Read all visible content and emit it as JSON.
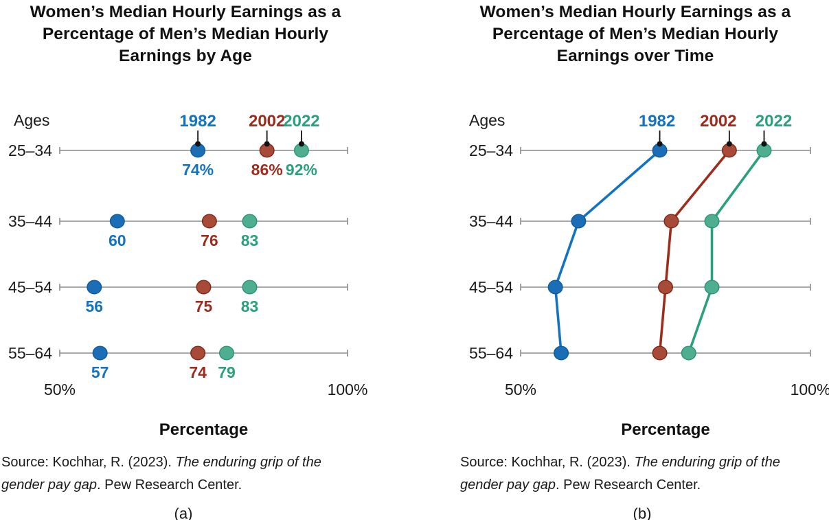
{
  "page": {
    "background": "#ffffff",
    "text_color": "#1a1a1a",
    "axis_color": "#8a8a8a",
    "leader_color": "#111111"
  },
  "chart_data": [
    {
      "type": "scatter",
      "title": "Women’s Median Hourly Earnings as a\nPercentage of Men’s Median Hourly\nEarnings by Age",
      "ylabel": "Ages",
      "xlabel": "Percentage",
      "xlim": [
        50,
        100
      ],
      "x_tick_labels": [
        "50%",
        "100%"
      ],
      "categories": [
        "25–34",
        "35–44",
        "45–54",
        "55–64"
      ],
      "series": [
        {
          "name": "1982",
          "values": [
            74,
            60,
            56,
            57
          ],
          "color": "#1373c2",
          "dot_fill": "#1b6eb5",
          "dot_stroke": "#0f5a9c"
        },
        {
          "name": "2002",
          "values": [
            86,
            76,
            75,
            74
          ],
          "color": "#9e2c1c",
          "dot_fill": "#a84a38",
          "dot_stroke": "#7e2715"
        },
        {
          "name": "2022",
          "values": [
            92,
            83,
            83,
            79
          ],
          "color": "#2aa07c",
          "dot_fill": "#4fae8f",
          "dot_stroke": "#2a9471"
        }
      ],
      "value_labels": true,
      "first_row_value_suffix": "%",
      "connect_lines": false,
      "legend_position": "above-first-row",
      "grid": false,
      "caption": "(a)"
    },
    {
      "type": "line",
      "title": "Women’s Median Hourly Earnings as a\nPercentage of Men’s Median Hourly\nEarnings over Time",
      "ylabel": "Ages",
      "xlabel": "Percentage",
      "xlim": [
        50,
        100
      ],
      "x_tick_labels": [
        "50%",
        "100%"
      ],
      "categories": [
        "25–34",
        "35–44",
        "45–54",
        "55–64"
      ],
      "series": [
        {
          "name": "1982",
          "values": [
            74,
            60,
            56,
            57
          ],
          "color": "#1373c2",
          "dot_fill": "#1b6eb5",
          "dot_stroke": "#0f5a9c"
        },
        {
          "name": "2002",
          "values": [
            86,
            76,
            75,
            74
          ],
          "color": "#9e2c1c",
          "dot_fill": "#a84a38",
          "dot_stroke": "#7e2715"
        },
        {
          "name": "2022",
          "values": [
            92,
            83,
            83,
            79
          ],
          "color": "#2aa07c",
          "dot_fill": "#4fae8f",
          "dot_stroke": "#2a9471"
        }
      ],
      "value_labels": false,
      "first_row_value_suffix": "%",
      "connect_lines": true,
      "legend_position": "above-first-row",
      "grid": false,
      "caption": "(b)"
    }
  ],
  "source_note": {
    "prefix": "Source: Kochhar, R. (2023). ",
    "italic_line1": "The enduring grip of the",
    "italic_line2": "gender pay gap",
    "suffix": ". Pew Research Center."
  }
}
